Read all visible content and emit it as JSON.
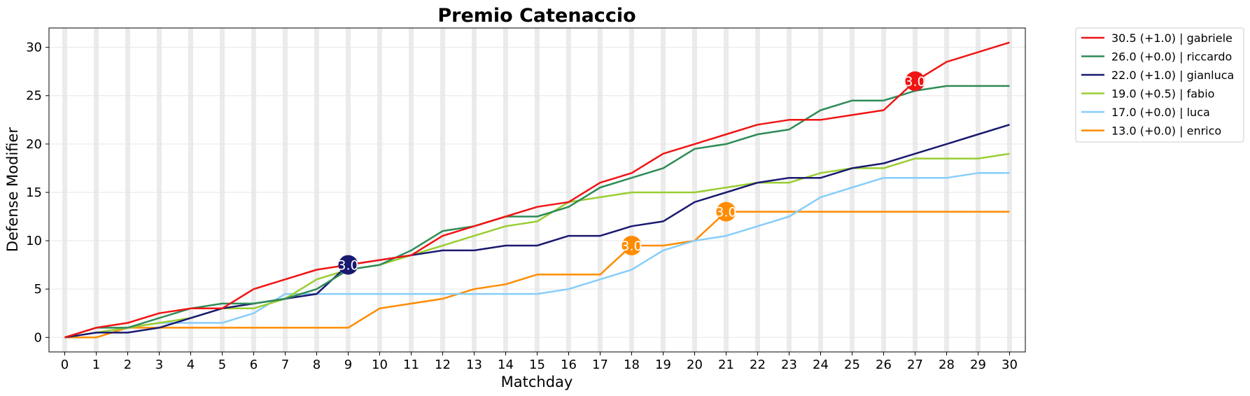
{
  "chart_data": {
    "type": "line",
    "title": "Premio Catenaccio",
    "xlabel": "Matchday",
    "ylabel": "Defense Modifier",
    "xlim": [
      -0.5,
      30.5
    ],
    "ylim": [
      -1.5,
      32
    ],
    "x": [
      0,
      1,
      2,
      3,
      4,
      5,
      6,
      7,
      8,
      9,
      10,
      11,
      12,
      13,
      14,
      15,
      16,
      17,
      18,
      19,
      20,
      21,
      22,
      23,
      24,
      25,
      26,
      27,
      28,
      29,
      30
    ],
    "xticks": [
      "0",
      "1",
      "2",
      "3",
      "4",
      "5",
      "6",
      "7",
      "8",
      "9",
      "10",
      "11",
      "12",
      "13",
      "14",
      "15",
      "16",
      "17",
      "18",
      "19",
      "20",
      "21",
      "22",
      "23",
      "24",
      "25",
      "26",
      "27",
      "28",
      "29",
      "30"
    ],
    "yticks": [
      0,
      5,
      10,
      15,
      20,
      25,
      30
    ],
    "yticklabels": [
      "0",
      "5",
      "10",
      "15",
      "20",
      "25",
      "30"
    ],
    "grid": true,
    "vertical_bands": true,
    "legend_position": "outside-top-right",
    "series": [
      {
        "name": "30.5 (+1.0) | gabriele",
        "color": "#f01414",
        "values": [
          0,
          1,
          1.5,
          2.5,
          3,
          3,
          5,
          6,
          7,
          7.5,
          8,
          8.5,
          10.5,
          11.5,
          12.5,
          13.5,
          14,
          16,
          17,
          19,
          20,
          21,
          22,
          22.5,
          22.5,
          23,
          23.5,
          26.5,
          28.5,
          29.5,
          30.5
        ]
      },
      {
        "name": "26.0 (+0.0) | riccardo",
        "color": "#2e8b57",
        "values": [
          0,
          1,
          1,
          2,
          3,
          3.5,
          3.5,
          4,
          5,
          7,
          7.5,
          9,
          11,
          11.5,
          12.5,
          12.5,
          13.5,
          15.5,
          16.5,
          17.5,
          19.5,
          20,
          21,
          21.5,
          23.5,
          24.5,
          24.5,
          25.5,
          26,
          26,
          26
        ]
      },
      {
        "name": "22.0 (+1.0) | gianluca",
        "color": "#191970",
        "values": [
          0,
          0.5,
          0.5,
          1,
          2,
          3,
          3.5,
          4,
          4.5,
          7.5,
          8,
          8.5,
          9,
          9,
          9.5,
          9.5,
          10.5,
          10.5,
          11.5,
          12,
          14,
          15,
          16,
          16.5,
          16.5,
          17.5,
          18,
          19,
          20,
          21,
          22
        ]
      },
      {
        "name": "19.0 (+0.5) | fabio",
        "color": "#9acd32",
        "values": [
          0,
          0.5,
          1,
          1.5,
          2,
          3,
          3,
          4,
          6,
          7,
          7.5,
          8.5,
          9.5,
          10.5,
          11.5,
          12,
          14,
          14.5,
          15,
          15,
          15,
          15.5,
          16,
          16,
          17,
          17.5,
          17.5,
          18.5,
          18.5,
          18.5,
          19
        ]
      },
      {
        "name": "17.0 (+0.0) | luca",
        "color": "#87cefa",
        "values": [
          0,
          0.5,
          1,
          1.5,
          1.5,
          1.5,
          2.5,
          4.5,
          4.5,
          4.5,
          4.5,
          4.5,
          4.5,
          4.5,
          4.5,
          4.5,
          5,
          6,
          7,
          9,
          10,
          10.5,
          11.5,
          12.5,
          14.5,
          15.5,
          16.5,
          16.5,
          16.5,
          17,
          17
        ]
      },
      {
        "name": "13.0 (+0.0) | enrico",
        "color": "#ff8c00",
        "values": [
          0,
          0,
          1,
          1,
          1,
          1,
          1,
          1,
          1,
          1,
          3,
          3.5,
          4,
          5,
          5.5,
          6.5,
          6.5,
          6.5,
          9.5,
          9.5,
          10,
          13,
          13,
          13,
          13,
          13,
          13,
          13,
          13,
          13,
          13
        ]
      }
    ],
    "annotations": [
      {
        "x": 9,
        "y": 7.5,
        "text": "3.0",
        "color": "#191970"
      },
      {
        "x": 18,
        "y": 9.5,
        "text": "3.0",
        "color": "#ff8c00"
      },
      {
        "x": 21,
        "y": 13,
        "text": "3.0",
        "color": "#ff8c00"
      },
      {
        "x": 27,
        "y": 26.5,
        "text": "3.0",
        "color": "#f01414"
      }
    ]
  }
}
